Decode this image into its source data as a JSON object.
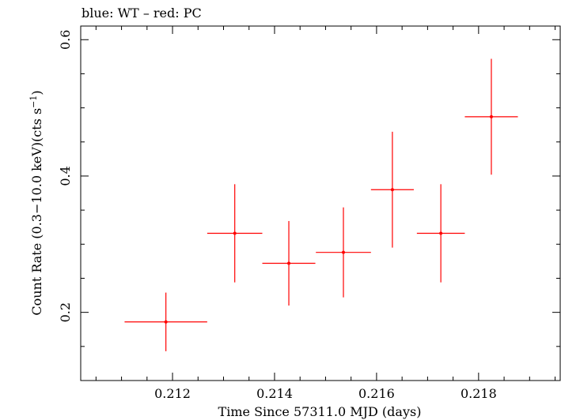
{
  "chart_data": {
    "type": "scatter",
    "title": "blue: WT – red: PC",
    "xlabel": "Time Since 57311.0 MJD (days)",
    "ylabel": "Count Rate (0.3−10.0 keV)(cts s",
    "ylabel_sup": "−1",
    "ylabel_end": ")",
    "xlim": [
      0.2102,
      0.2196
    ],
    "ylim": [
      0.1,
      0.62
    ],
    "x_ticks": [
      0.212,
      0.214,
      0.216,
      0.218
    ],
    "x_tick_labels": [
      "0.212",
      "0.214",
      "0.216",
      "0.218"
    ],
    "y_ticks": [
      0.2,
      0.4,
      0.6
    ],
    "y_tick_labels": [
      "0.2",
      "0.4",
      "0.6"
    ],
    "color": "#ff0000",
    "series": [
      {
        "name": "PC",
        "points": [
          {
            "x": 0.21187,
            "xerr": 0.00081,
            "y": 0.186,
            "yerr": 0.043
          },
          {
            "x": 0.21322,
            "xerr": 0.00054,
            "y": 0.316,
            "yerr": 0.072
          },
          {
            "x": 0.21428,
            "xerr": 0.00052,
            "y": 0.272,
            "yerr": 0.062
          },
          {
            "x": 0.21535,
            "xerr": 0.00054,
            "y": 0.288,
            "yerr": 0.066
          },
          {
            "x": 0.21631,
            "xerr": 0.00042,
            "y": 0.38,
            "yerr": 0.085
          },
          {
            "x": 0.21726,
            "xerr": 0.00047,
            "y": 0.316,
            "yerr": 0.072
          },
          {
            "x": 0.21825,
            "xerr": 0.00052,
            "y": 0.487,
            "yerr": 0.085
          }
        ]
      }
    ]
  }
}
